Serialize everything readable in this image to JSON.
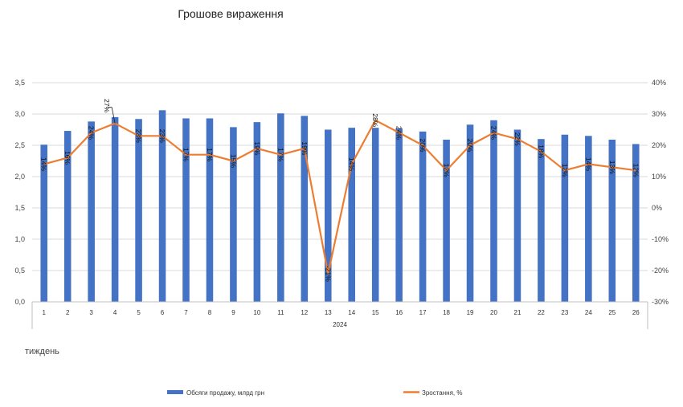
{
  "chart_data": {
    "type": "bar",
    "title": "Грошове вираження",
    "categories": [
      "1",
      "2",
      "3",
      "4",
      "5",
      "6",
      "7",
      "8",
      "9",
      "10",
      "11",
      "12",
      "13",
      "14",
      "15",
      "16",
      "17",
      "18",
      "19",
      "20",
      "21",
      "22",
      "23",
      "24",
      "25",
      "26"
    ],
    "group_label": "2024",
    "xlabel": "тиждень",
    "y_left": {
      "ylim": [
        0,
        3.5
      ],
      "ticks": [
        "0,0",
        "0,5",
        "1,0",
        "1,5",
        "2,0",
        "2,5",
        "3,0",
        "3,5"
      ]
    },
    "y_right": {
      "ylim": [
        -30,
        40
      ],
      "ticks": [
        "-30%",
        "-20%",
        "-10%",
        "0%",
        "10%",
        "20%",
        "30%",
        "40%"
      ]
    },
    "series": [
      {
        "name": "Обсяги продажу, млрд грн",
        "type": "bar",
        "axis": "left",
        "color": "#4472C4",
        "values": [
          2.51,
          2.73,
          2.88,
          2.95,
          2.92,
          3.06,
          2.93,
          2.93,
          2.79,
          2.87,
          3.01,
          2.97,
          2.75,
          2.78,
          2.78,
          2.77,
          2.72,
          2.59,
          2.83,
          2.9,
          2.75,
          2.6,
          2.67,
          2.65,
          2.59,
          2.52
        ]
      },
      {
        "name": "Зростання, %",
        "type": "line",
        "axis": "right",
        "color": "#ED7D31",
        "values": [
          14,
          16,
          24,
          27,
          23,
          23,
          17,
          17,
          15,
          19,
          17,
          19,
          -21,
          14,
          28,
          24,
          20,
          12,
          20,
          24,
          22,
          18,
          12,
          14,
          13,
          12
        ],
        "data_labels": [
          "14%",
          "16%",
          "24%",
          "27%",
          "23%",
          "23%",
          "17%",
          "17%",
          "15%",
          "19%",
          "17%",
          "19%",
          "-21%",
          "14%",
          "28%",
          "24%",
          "20%",
          "12%",
          "20%",
          "24%",
          "22%",
          "18%",
          "12%",
          "14%",
          "13%",
          "12%"
        ]
      }
    ],
    "grid": true,
    "legend_position": "bottom"
  }
}
